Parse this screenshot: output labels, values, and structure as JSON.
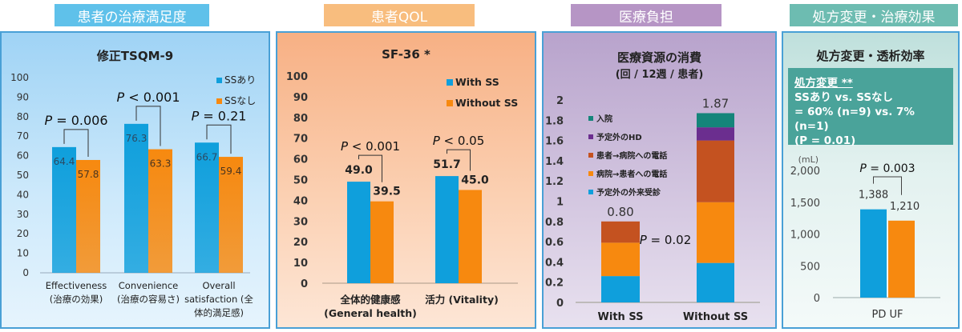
{
  "headers": [
    {
      "label": "患者の治療満足度",
      "color": "#5fc1ea"
    },
    {
      "label": "患者QOL",
      "color": "#f8bd7e"
    },
    {
      "label": "医療負担",
      "color": "#b695c5"
    },
    {
      "label": "処方変更・治療効果",
      "color": "#6dbcb1"
    }
  ],
  "colors": {
    "blue": "#0f9fdc",
    "orange": "#f7890f",
    "red_brown": "#c45220",
    "purple": "#6b2e8f",
    "teal": "#14857a"
  },
  "chart_data": [
    {
      "type": "bar",
      "title": "修正TSQM-9",
      "categories": [
        "Effectiveness (治療の効果)",
        "Convenience (治療の容易さ)",
        "Overall satisfaction (全体的満足感)"
      ],
      "category_lines": [
        [
          "Effectiveness",
          "(治療の効果)"
        ],
        [
          "Convenience",
          "(治療の容易さ)"
        ],
        [
          "Overall",
          "satisfaction (全",
          "体的満足感)"
        ]
      ],
      "series": [
        {
          "name": "SSあり",
          "values": [
            64.4,
            76.3,
            66.7
          ]
        },
        {
          "name": "SSなし",
          "values": [
            57.8,
            63.3,
            59.4
          ]
        }
      ],
      "value_labels": [
        [
          "64.4",
          "76.3",
          "66.7"
        ],
        [
          "57.8",
          "63.3",
          "59.4"
        ]
      ],
      "ylim": [
        0,
        100
      ],
      "yticks": [
        "0",
        "10",
        "20",
        "30",
        "40",
        "50",
        "60",
        "70",
        "80",
        "90",
        "100"
      ],
      "legend_position": "top-right",
      "annotations": [
        "P = 0.006",
        "P < 0.001",
        "P = 0.21"
      ]
    },
    {
      "type": "bar",
      "title": "SF-36 *",
      "categories": [
        "全体的健康感 (General health)",
        "活力 (Vitality)"
      ],
      "category_lines": [
        [
          "全体的健康感",
          "(General health)"
        ],
        [
          "活力 (Vitality)"
        ]
      ],
      "series": [
        {
          "name": "With SS",
          "values": [
            49.0,
            51.7
          ]
        },
        {
          "name": "Without SS",
          "values": [
            39.5,
            45.0
          ]
        }
      ],
      "value_labels": [
        [
          "49.0",
          "51.7"
        ],
        [
          "39.5",
          "45.0"
        ]
      ],
      "ylim": [
        0,
        100
      ],
      "yticks": [
        "0",
        "10",
        "20",
        "30",
        "40",
        "50",
        "60",
        "70",
        "80",
        "90",
        "100"
      ],
      "legend_position": "top-right",
      "annotations": [
        "P < 0.001",
        "P < 0.05"
      ]
    },
    {
      "type": "bar",
      "stacked": true,
      "title": "医療資源の消費",
      "subtitle": "(回 / 12週 / 患者)",
      "categories": [
        "With SS",
        "Without SS"
      ],
      "series": [
        {
          "name": "予定外の外来受診",
          "color": "blue",
          "values": [
            0.26,
            0.39
          ]
        },
        {
          "name": "病院→患者への電話",
          "color": "orange",
          "values": [
            0.33,
            0.6
          ]
        },
        {
          "name": "患者→病院への電話",
          "color": "red_brown",
          "values": [
            0.21,
            0.61
          ]
        },
        {
          "name": "予定外のHD",
          "color": "purple",
          "values": [
            0.0,
            0.13
          ]
        },
        {
          "name": "入院",
          "color": "teal",
          "values": [
            0.0,
            0.14
          ]
        }
      ],
      "legend_order": [
        "入院",
        "予定外のHD",
        "患者→病院への電話",
        "病院→患者への電話",
        "予定外の外来受診"
      ],
      "totals": [
        "0.80",
        "1.87"
      ],
      "ylim": [
        0,
        2
      ],
      "yticks": [
        "0",
        "0.2",
        "0.4",
        "0.6",
        "0.8",
        "1",
        "1.2",
        "1.4",
        "1.6",
        "1.8",
        "2"
      ],
      "legend_position": "top-left",
      "annotations": [
        "P = 0.02"
      ]
    },
    {
      "type": "bar",
      "title": "処方変更・透析効率",
      "categories": [
        "PD UF"
      ],
      "series": [
        {
          "name": "SSあり",
          "values": [
            1388
          ]
        },
        {
          "name": "SSなし",
          "values": [
            1210
          ]
        }
      ],
      "value_labels": [
        [
          "1,388"
        ],
        [
          "1,210"
        ]
      ],
      "ylim": [
        0,
        2000
      ],
      "yticks": [
        "0",
        "500",
        "1,000",
        "1,500",
        "2,000"
      ],
      "unit": "(mL)",
      "annotations": [
        "P = 0.003"
      ]
    }
  ],
  "note": {
    "title": "処方変更 **",
    "line1": "SSあり vs. SSなし",
    "line2": "= 60% (n=9) vs. 7% (n=1)",
    "line3": "(P = 0.01)"
  }
}
